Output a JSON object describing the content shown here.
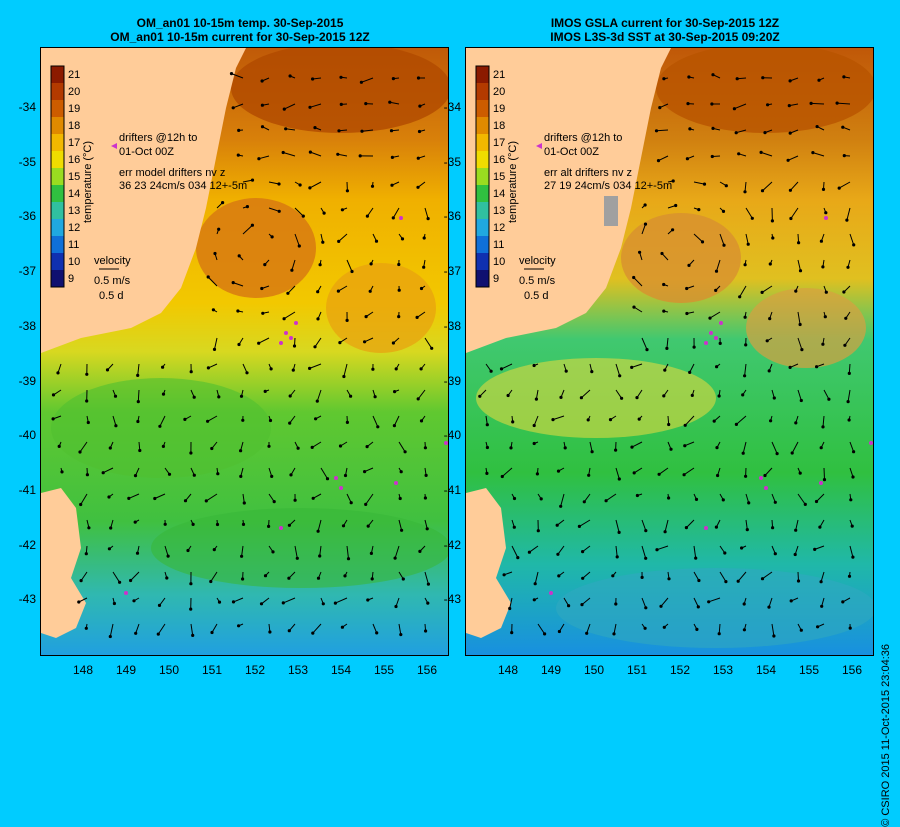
{
  "left_panel": {
    "title_line1": "OM_an01 10-15m temp. 30-Sep-2015",
    "title_line2": "OM_an01 10-15m current for 30-Sep-2015 12Z",
    "drifters_line1": "drifters @12h to",
    "drifters_line2": "01-Oct 00Z",
    "err_line1": "err model drifters nv z",
    "err_line2": "36 23 24cm/s 034 12+-5m"
  },
  "right_panel": {
    "title_line1": "IMOS GSLA current for 30-Sep-2015 12Z",
    "title_line2": "IMOS L3S-3d SST at 30-Sep-2015 09:20Z",
    "drifters_line1": "drifters @12h to",
    "drifters_line2": "01-Oct 00Z",
    "err_line1": "err alt drifters nv z",
    "err_line2": "27 19 24cm/s 034 12+-5m"
  },
  "velocity_key": {
    "label": "velocity",
    "speed": "0.5 m/s",
    "duration": "0.5 d"
  },
  "colorbar": {
    "label": "temperature (°C)",
    "ticks": [
      "21",
      "20",
      "19",
      "18",
      "17",
      "16",
      "15",
      "14",
      "13",
      "12",
      "11",
      "10",
      "9"
    ],
    "colors": [
      "#8b1a00",
      "#b33a00",
      "#cc5c00",
      "#e08a00",
      "#f2b800",
      "#f0dc00",
      "#9adc20",
      "#30c040",
      "#30c0a0",
      "#20a8e0",
      "#1070d8",
      "#1030b0",
      "#101070"
    ]
  },
  "y_axis_labels": [
    "-34",
    "-35",
    "-36",
    "-37",
    "-38",
    "-39",
    "-40",
    "-41",
    "-42",
    "-43"
  ],
  "x_axis_labels": [
    "148",
    "149",
    "150",
    "151",
    "152",
    "153",
    "154",
    "155",
    "156"
  ],
  "copyright": "© CSIRO 2015   11-Oct-2015 23:04:36",
  "colors": {
    "background": "#00ccff",
    "land": "#ffcc99",
    "arrow": "#000000",
    "drifter": "#cc33cc"
  }
}
